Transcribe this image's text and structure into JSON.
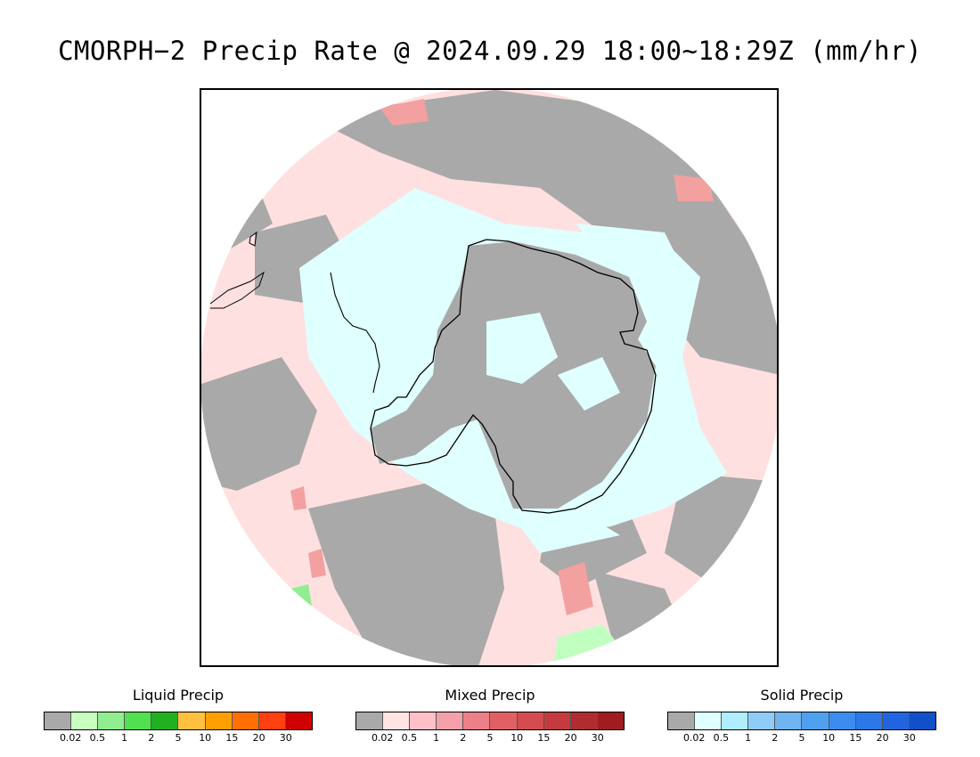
{
  "title": "CMORPH−2 Precip Rate @ 2024.09.29 18:00~18:29Z (mm/hr)",
  "map": {
    "projection": "south-polar-stereographic",
    "region": "Antarctica",
    "colors": {
      "ocean_missing": "#ffffff",
      "no_precip": "#a9a9a9",
      "mixed_light": "#ffe0e0",
      "mixed_medium": "#f2a0a0",
      "solid_light": "#e0ffff",
      "liquid_light": "#c0ffc0",
      "coastline": "#000000"
    }
  },
  "legends": [
    {
      "id": "liquid",
      "title": "Liquid Precip",
      "ticks": [
        "0.02",
        "0.5",
        "1",
        "2",
        "5",
        "10",
        "15",
        "20",
        "30"
      ],
      "colors": [
        "#a9a9a9",
        "#c8ffc0",
        "#90ee90",
        "#50e050",
        "#20b020",
        "#ffc040",
        "#ffa000",
        "#ff7000",
        "#ff4010",
        "#d00000"
      ]
    },
    {
      "id": "mixed",
      "title": "Mixed Precip",
      "ticks": [
        "0.02",
        "0.5",
        "1",
        "2",
        "5",
        "10",
        "15",
        "20",
        "30"
      ],
      "colors": [
        "#a9a9a9",
        "#ffe4e4",
        "#ffc0c8",
        "#f4a0a8",
        "#ec8088",
        "#e06066",
        "#d44c50",
        "#c43a3e",
        "#b02c2e",
        "#a01c20"
      ]
    },
    {
      "id": "solid",
      "title": "Solid Precip",
      "ticks": [
        "0.02",
        "0.5",
        "1",
        "2",
        "5",
        "10",
        "15",
        "20",
        "30"
      ],
      "colors": [
        "#a9a9a9",
        "#e0ffff",
        "#b0eeff",
        "#90ccf8",
        "#70b4f0",
        "#50a0f0",
        "#3c8cf0",
        "#2c78e8",
        "#2064e0",
        "#1050c8"
      ]
    }
  ]
}
